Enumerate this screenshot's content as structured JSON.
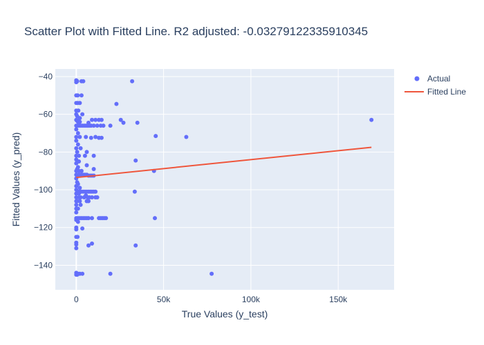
{
  "chart_data": {
    "type": "scatter",
    "title": "Scatter Plot with Fitted Line. R2 adjusted: -0.03279122335910345",
    "xlabel": "True Values (y_test)",
    "ylabel": "Fitted Values (y_pred)",
    "xlim": [
      -12000,
      182000
    ],
    "ylim": [
      -153,
      -36
    ],
    "x_ticks": [
      0,
      50000,
      100000,
      150000
    ],
    "x_tick_labels": [
      "0",
      "50k",
      "100k",
      "150k"
    ],
    "y_ticks": [
      -40,
      -60,
      -80,
      -100,
      -120,
      -140
    ],
    "y_tick_labels": [
      "−40",
      "−60",
      "−80",
      "−100",
      "−120",
      "−140"
    ],
    "grid": true,
    "legend_position": "top-right",
    "colors": {
      "actual": "#636efa",
      "fitted": "#ef553b",
      "plot_bg": "#e5ecf6",
      "grid": "#ffffff",
      "text": "#2a3f5f"
    },
    "series": [
      {
        "name": "Actual",
        "mode": "markers",
        "points": [
          [
            0,
            -42
          ],
          [
            0,
            -43
          ],
          [
            500,
            -42.5
          ],
          [
            3000,
            -42.5
          ],
          [
            4000,
            -42.5
          ],
          [
            32000,
            -42.5
          ],
          [
            0,
            -50
          ],
          [
            800,
            -50
          ],
          [
            3000,
            -50
          ],
          [
            0,
            -54
          ],
          [
            800,
            -54
          ],
          [
            2000,
            -54
          ],
          [
            23000,
            -54.5
          ],
          [
            0,
            -58
          ],
          [
            1200,
            -58
          ],
          [
            0,
            -60
          ],
          [
            500,
            -61
          ],
          [
            3500,
            -60
          ],
          [
            2000,
            -62
          ],
          [
            0,
            -63
          ],
          [
            500,
            -63.5
          ],
          [
            1000,
            -64
          ],
          [
            2000,
            -64
          ],
          [
            9000,
            -63
          ],
          [
            11000,
            -63
          ],
          [
            13000,
            -63
          ],
          [
            14500,
            -63
          ],
          [
            25500,
            -63
          ],
          [
            0,
            -66
          ],
          [
            500,
            -66
          ],
          [
            1500,
            -66
          ],
          [
            2500,
            -66
          ],
          [
            3500,
            -66
          ],
          [
            4500,
            -66
          ],
          [
            5500,
            -66
          ],
          [
            6500,
            -66
          ],
          [
            7500,
            -66
          ],
          [
            8500,
            -66
          ],
          [
            10000,
            -66
          ],
          [
            12000,
            -66
          ],
          [
            14000,
            -66
          ],
          [
            15500,
            -66
          ],
          [
            19500,
            -66
          ],
          [
            27000,
            -64.5
          ],
          [
            35000,
            -64.5
          ],
          [
            7000,
            -64.5
          ],
          [
            0,
            -68
          ],
          [
            1000,
            -70
          ],
          [
            0,
            -72
          ],
          [
            2000,
            -72
          ],
          [
            5500,
            -72
          ],
          [
            8500,
            -72.5
          ],
          [
            11000,
            -72
          ],
          [
            13000,
            -72.5
          ],
          [
            14500,
            -72.5
          ],
          [
            45500,
            -71.5
          ],
          [
            63000,
            -72
          ],
          [
            0,
            -74
          ],
          [
            1000,
            -76
          ],
          [
            0,
            -78
          ],
          [
            2500,
            -78
          ],
          [
            500,
            -80
          ],
          [
            6000,
            -80
          ],
          [
            0,
            -82
          ],
          [
            1500,
            -82
          ],
          [
            5000,
            -82
          ],
          [
            10000,
            -82
          ],
          [
            0,
            -84
          ],
          [
            1500,
            -85
          ],
          [
            34000,
            -84.5
          ],
          [
            0,
            -86
          ],
          [
            1000,
            -88
          ],
          [
            6000,
            -87
          ],
          [
            500,
            -89
          ],
          [
            10000,
            -89
          ],
          [
            0,
            -90
          ],
          [
            1500,
            -90
          ],
          [
            3000,
            -90
          ],
          [
            44500,
            -90
          ],
          [
            0,
            -92
          ],
          [
            1000,
            -92
          ],
          [
            2000,
            -92
          ],
          [
            3000,
            -92
          ],
          [
            4000,
            -92
          ],
          [
            5000,
            -92
          ],
          [
            6000,
            -92
          ],
          [
            7000,
            -92.5
          ],
          [
            8000,
            -92.5
          ],
          [
            9000,
            -92.5
          ],
          [
            10000,
            -92.5
          ],
          [
            0,
            -94
          ],
          [
            500,
            -96
          ],
          [
            1000,
            -97
          ],
          [
            0,
            -98
          ],
          [
            2000,
            -99
          ],
          [
            0,
            -100
          ],
          [
            1000,
            -101
          ],
          [
            2000,
            -101
          ],
          [
            3000,
            -101
          ],
          [
            4000,
            -101
          ],
          [
            5000,
            -101
          ],
          [
            6000,
            -101
          ],
          [
            7000,
            -101
          ],
          [
            8000,
            -101
          ],
          [
            9000,
            -101
          ],
          [
            10000,
            -101
          ],
          [
            11000,
            -101
          ],
          [
            33500,
            -101
          ],
          [
            0,
            -102
          ],
          [
            1500,
            -102
          ],
          [
            5500,
            -103
          ],
          [
            0,
            -104
          ],
          [
            1500,
            -104
          ],
          [
            2500,
            -104
          ],
          [
            4500,
            -104
          ],
          [
            6500,
            -104
          ],
          [
            7500,
            -104
          ],
          [
            9000,
            -104
          ],
          [
            11000,
            -104
          ],
          [
            12000,
            -104
          ],
          [
            0,
            -106
          ],
          [
            500,
            -106
          ],
          [
            2000,
            -106
          ],
          [
            6000,
            -106
          ],
          [
            7000,
            -106
          ],
          [
            2500,
            -108
          ],
          [
            0,
            -108
          ],
          [
            0,
            -110
          ],
          [
            1000,
            -110
          ],
          [
            0,
            -112
          ],
          [
            0,
            -115
          ],
          [
            1000,
            -115
          ],
          [
            2000,
            -115
          ],
          [
            3000,
            -115
          ],
          [
            4000,
            -115
          ],
          [
            5000,
            -115
          ],
          [
            6000,
            -115
          ],
          [
            7000,
            -115
          ],
          [
            9000,
            -115
          ],
          [
            13000,
            -115
          ],
          [
            14000,
            -115
          ],
          [
            15000,
            -115
          ],
          [
            16000,
            -115
          ],
          [
            17000,
            -115
          ],
          [
            45000,
            -115
          ],
          [
            0,
            -116
          ],
          [
            1000,
            -117
          ],
          [
            0,
            -120
          ],
          [
            0,
            -121
          ],
          [
            3500,
            -120.5
          ],
          [
            0,
            -125
          ],
          [
            700,
            -125
          ],
          [
            0,
            -128
          ],
          [
            0,
            -129
          ],
          [
            7000,
            -129.5
          ],
          [
            9000,
            -128.5
          ],
          [
            34000,
            -129.5
          ],
          [
            0,
            -131
          ],
          [
            0,
            -144
          ],
          [
            0,
            -145
          ],
          [
            500,
            -145
          ],
          [
            1000,
            -144.5
          ],
          [
            2000,
            -144.5
          ],
          [
            3500,
            -144.5
          ],
          [
            19500,
            -144.5
          ],
          [
            77500,
            -144.5
          ],
          [
            169000,
            -63
          ]
        ]
      },
      {
        "name": "Fitted Line",
        "mode": "lines",
        "x": [
          0,
          169000
        ],
        "y": [
          -93.5,
          -77.5
        ]
      }
    ]
  }
}
